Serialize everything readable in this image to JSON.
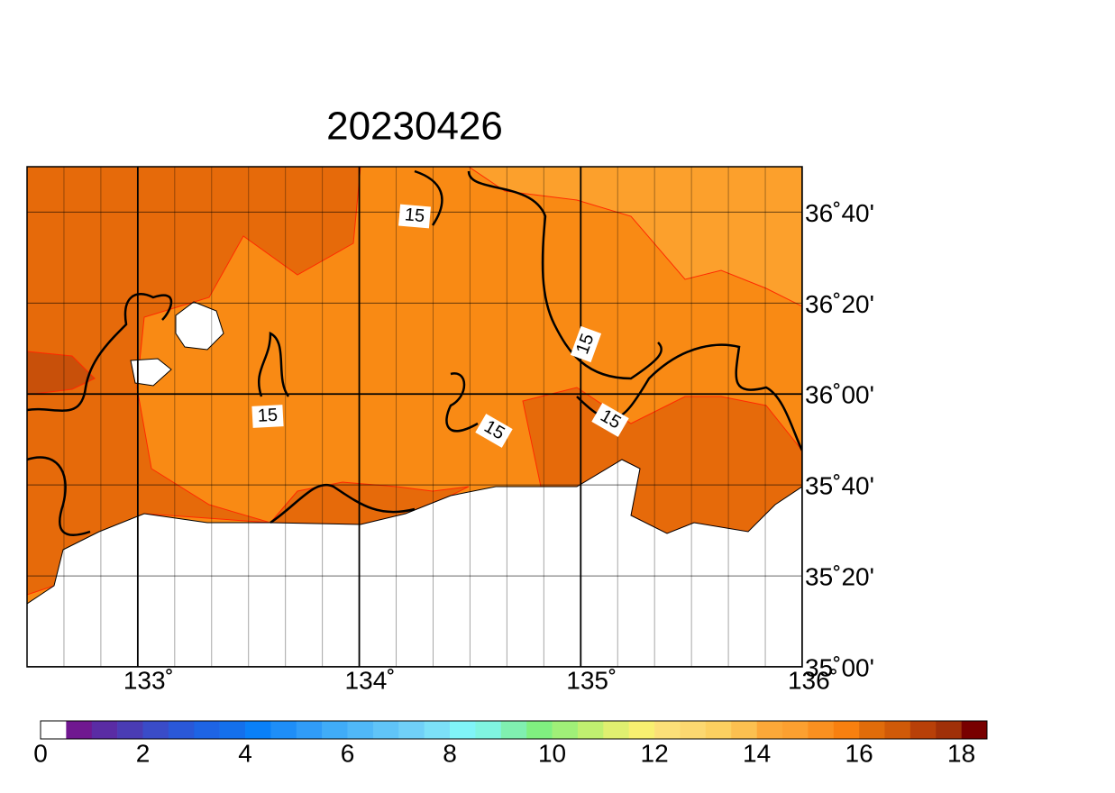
{
  "title": "20230426",
  "map": {
    "lon_range": [
      132.5,
      136
    ],
    "lat_range": [
      35,
      36.8333
    ],
    "lon_ticks": [
      {
        "value": 133,
        "label": "133˚"
      },
      {
        "value": 134,
        "label": "134˚"
      },
      {
        "value": 135,
        "label": "135˚"
      },
      {
        "value": 136,
        "label": "136˚"
      }
    ],
    "lat_ticks": [
      {
        "value": 35,
        "label": "35˚00'"
      },
      {
        "value": 35.3333,
        "label": "35˚20'"
      },
      {
        "value": 35.6667,
        "label": "35˚40'"
      },
      {
        "value": 36,
        "label": "36˚00'"
      },
      {
        "value": 36.3333,
        "label": "36˚20'"
      },
      {
        "value": 36.6667,
        "label": "36˚40'"
      }
    ]
  },
  "contour_labels": [
    "15",
    "15",
    "15",
    "15",
    "15"
  ],
  "colorbar": {
    "range": [
      0,
      18.5
    ],
    "ticks": [
      0,
      2,
      4,
      6,
      8,
      10,
      12,
      14,
      16,
      18
    ],
    "colors": [
      "#ffffff",
      "#701890",
      "#5a2ca4",
      "#4a3cb4",
      "#3a4cc8",
      "#2a58d8",
      "#1e64e4",
      "#1470ec",
      "#0a80f8",
      "#1e8ef8",
      "#309cf8",
      "#40acf8",
      "#50b8f8",
      "#60c4f8",
      "#70d0f8",
      "#7ce0f8",
      "#80f4f8",
      "#80f4e0",
      "#80f0b0",
      "#80f080",
      "#a0f078",
      "#c0f070",
      "#e0f070",
      "#f8f070",
      "#fce078",
      "#fcd870",
      "#fcd060",
      "#fcc050",
      "#fca838",
      "#fca030",
      "#fa9020",
      "#f88010",
      "#e06c0a",
      "#d05a08",
      "#b84008",
      "#a03008",
      "#780000"
    ]
  }
}
